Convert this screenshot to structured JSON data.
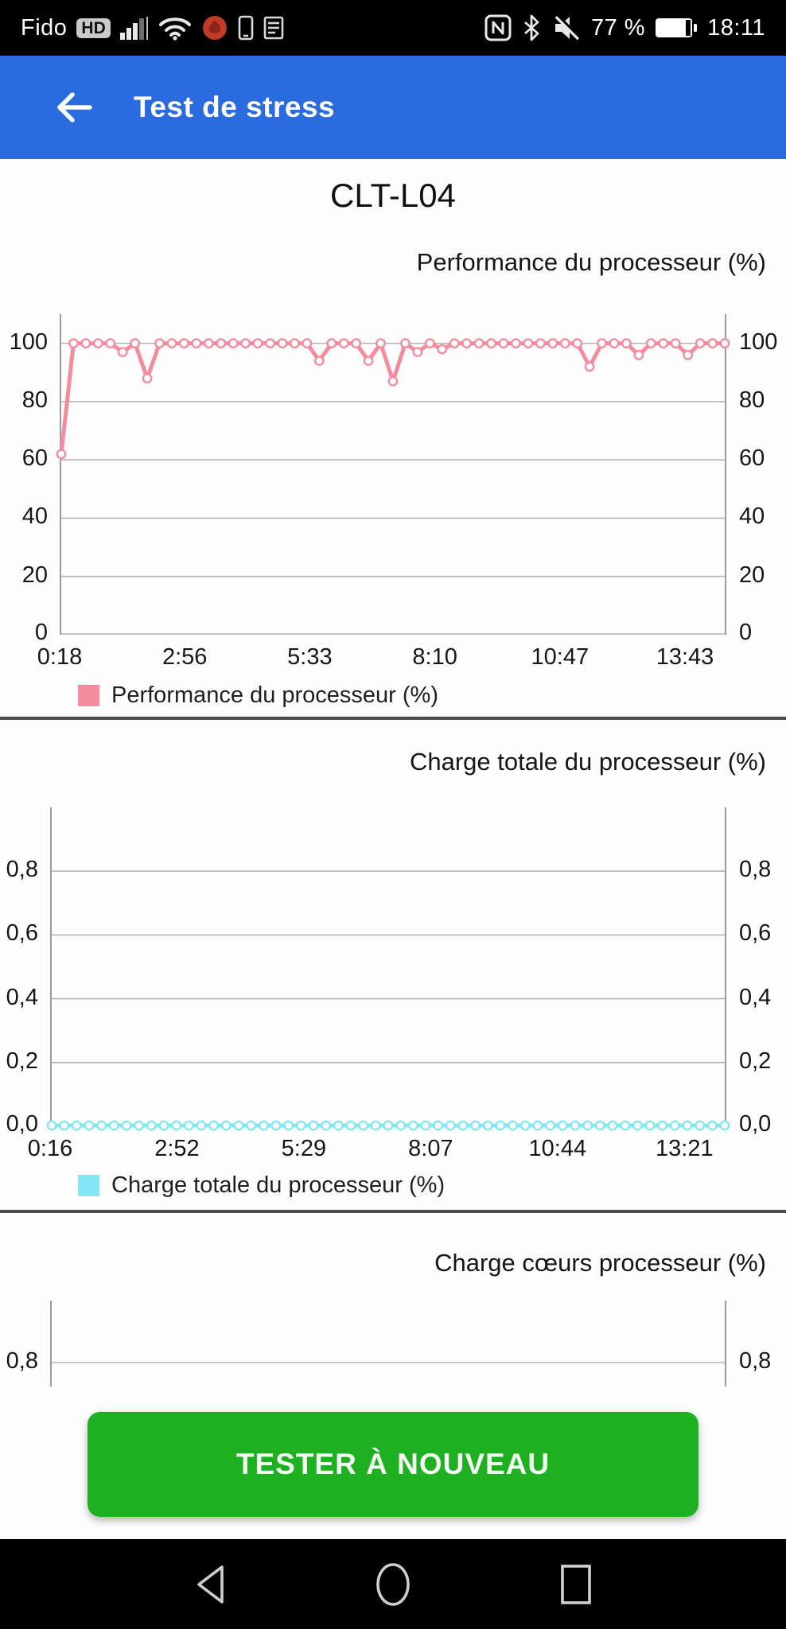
{
  "status_bar": {
    "carrier": "Fido",
    "hd_badge": "HD",
    "left_icons": [
      "signal-strength-icon",
      "wifi-icon",
      "app-notification-icon",
      "phone-icon",
      "notes-icon"
    ],
    "right": {
      "icons": [
        "nfc-icon",
        "bluetooth-icon",
        "mute-icon",
        "battery-icon"
      ],
      "battery_percent": "77 %",
      "time": "18:11"
    }
  },
  "header": {
    "title": "Test de stress"
  },
  "page": {
    "device_title": "CLT-L04"
  },
  "colors": {
    "header_blue": "#2a6ce0",
    "performance_pink": "#f48c9e",
    "charge_cyan": "#85e6f6",
    "button_green": "#1fb022",
    "gridline": "#b3b3b3",
    "axis": "#9b9b9b",
    "divider": "#4c4c4c",
    "status_black": "#000000"
  },
  "chart_data": [
    {
      "type": "line",
      "title": "Performance du processeur (%)",
      "legend": "Performance du processeur (%)",
      "ylim": [
        0,
        110
      ],
      "grid": true,
      "legend_position": "bottom-left",
      "y_ticks": [
        {
          "value": 0,
          "label": "0"
        },
        {
          "value": 20,
          "label": "20"
        },
        {
          "value": 40,
          "label": "40"
        },
        {
          "value": 60,
          "label": "60"
        },
        {
          "value": 80,
          "label": "80"
        },
        {
          "value": 100,
          "label": "100"
        }
      ],
      "x_tick_labels": [
        "0:18",
        "2:56",
        "5:33",
        "8:10",
        "10:47",
        "13:43"
      ],
      "series": [
        {
          "name": "Performance du processeur (%)",
          "color": "#f48c9e",
          "values": [
            62,
            100,
            100,
            100,
            100,
            97,
            100,
            88,
            100,
            100,
            100,
            100,
            100,
            100,
            100,
            100,
            100,
            100,
            100,
            100,
            100,
            94,
            100,
            100,
            100,
            94,
            100,
            87,
            100,
            97,
            100,
            98,
            100,
            100,
            100,
            100,
            100,
            100,
            100,
            100,
            100,
            100,
            100,
            92,
            100,
            100,
            100,
            96,
            100,
            100,
            100,
            96,
            100,
            100,
            100
          ]
        }
      ]
    },
    {
      "type": "line",
      "title": "Charge totale du processeur (%)",
      "legend": "Charge totale du processeur (%)",
      "ylim": [
        0,
        1.0
      ],
      "grid": true,
      "legend_position": "bottom-left",
      "y_ticks": [
        {
          "value": 0,
          "label": "0,0"
        },
        {
          "value": 0.2,
          "label": "0,2"
        },
        {
          "value": 0.4,
          "label": "0,4"
        },
        {
          "value": 0.6,
          "label": "0,6"
        },
        {
          "value": 0.8,
          "label": "0,8"
        }
      ],
      "x_tick_labels": [
        "0:16",
        "2:52",
        "5:29",
        "8:07",
        "10:44",
        "13:21"
      ],
      "series": [
        {
          "name": "Charge totale du processeur (%)",
          "color": "#85e6f6",
          "values": [
            0,
            0,
            0,
            0,
            0,
            0,
            0,
            0,
            0,
            0,
            0,
            0,
            0,
            0,
            0,
            0,
            0,
            0,
            0,
            0,
            0,
            0,
            0,
            0,
            0,
            0,
            0,
            0,
            0,
            0,
            0,
            0,
            0,
            0,
            0,
            0,
            0,
            0,
            0,
            0,
            0,
            0,
            0,
            0,
            0,
            0,
            0,
            0,
            0,
            0,
            0,
            0,
            0,
            0,
            0
          ]
        }
      ]
    },
    {
      "type": "line",
      "title": "Charge cœurs processeur (%)",
      "ylim": [
        0.725,
        0.995
      ],
      "grid": true,
      "y_ticks": [
        {
          "value": 0.8,
          "label": "0,8"
        }
      ],
      "series": []
    }
  ],
  "action_button": {
    "label": "TESTER À NOUVEAU"
  },
  "nav_bar": {
    "icons": [
      "back-triangle-icon",
      "home-circle-icon",
      "recents-square-icon"
    ]
  }
}
